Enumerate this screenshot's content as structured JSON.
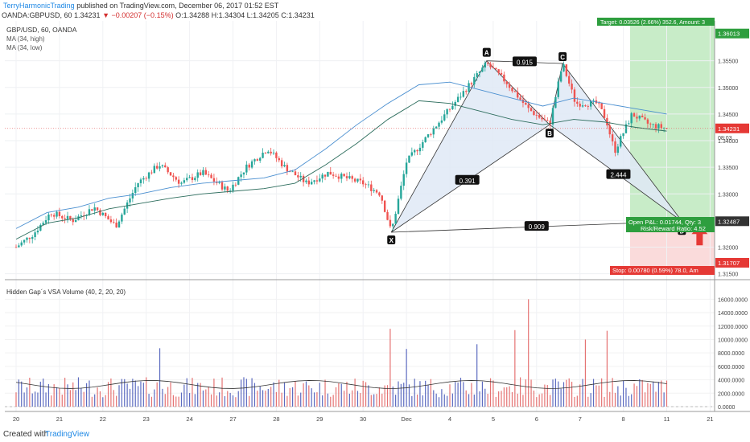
{
  "header": {
    "author": "TerryHarmonicTrading",
    "published": "published on TradingView.com, December 06, 2017 01:52 EST",
    "symbol_line_prefix": "OANDA:GBPUSD, 60  1.34231",
    "change": "−0.00207 (−0.15%)",
    "ohlc": "O:1.34288 H:1.34304 L:1.34205 C:1.34231"
  },
  "legend": {
    "symbol": "GBP/USD, 60, OANDA",
    "ma_high": "MA (34, high)",
    "ma_low": "MA (34, low)",
    "volume_title": "Hidden Gap´s VSA Volume (40, 2, 20, 20)"
  },
  "footer": {
    "created": "Created with",
    "brand": "TradingView"
  },
  "colors": {
    "up": "#26a69a",
    "down": "#ef5350",
    "pattern_fill": "#dfe9f6",
    "target": "#c8ecc8",
    "stop": "#fadbdb",
    "vol_up": "#5c6bc0",
    "vol_down": "#e57373"
  },
  "chart_data": [
    {
      "type": "candlestick",
      "title": "GBP/USD, 60, OANDA",
      "x_tick_labels": [
        "20",
        "21",
        "22",
        "23",
        "24",
        "27",
        "28",
        "29",
        "30",
        "Dec",
        "4",
        "5",
        "6",
        "7",
        "8",
        "11",
        "21"
      ],
      "y_tick_labels": [
        "1.31500",
        "1.32000",
        "1.32500",
        "1.33000",
        "1.33500",
        "1.34000",
        "1.34500",
        "1.35000",
        "1.35500"
      ],
      "ylim": [
        1.3148,
        1.3625
      ],
      "series": [
        {
          "name": "MA (34, high)",
          "values": [
            1.3235,
            1.3265,
            1.3275,
            1.3292,
            1.33,
            1.3312,
            1.332,
            1.3325,
            1.333,
            1.3345,
            1.3385,
            1.343,
            1.347,
            1.3505,
            1.351,
            1.3495,
            1.348,
            1.3465,
            1.348,
            1.347,
            1.346,
            1.345
          ]
        },
        {
          "name": "MA (34, low)",
          "values": [
            1.3215,
            1.3245,
            1.3255,
            1.3272,
            1.3282,
            1.3292,
            1.33,
            1.3305,
            1.331,
            1.332,
            1.3355,
            1.3395,
            1.344,
            1.3475,
            1.347,
            1.3455,
            1.344,
            1.343,
            1.344,
            1.3435,
            1.3425,
            1.3418
          ]
        }
      ],
      "pattern": {
        "points": [
          {
            "label": "X",
            "day": 28.65,
            "price": 1.3228
          },
          {
            "label": "A",
            "day": 30.85,
            "price": 1.355
          },
          {
            "label": "B",
            "day": 32.3,
            "price": 1.343
          },
          {
            "label": "C",
            "day": 32.6,
            "price": 1.3545
          },
          {
            "label": "D",
            "day": 35.35,
            "price": 1.32487
          }
        ],
        "ratios": [
          {
            "label": "0.915",
            "between": "A-C"
          },
          {
            "label": "0.391",
            "between": "X-B"
          },
          {
            "label": "2.444",
            "between": "B-D"
          },
          {
            "label": "0.909",
            "between": "X-D"
          }
        ]
      },
      "price_labels": {
        "target": "1.36013",
        "current": "1.34231",
        "countdown": "08:03",
        "entry": "1.32487",
        "stop": "1.31707"
      },
      "position": {
        "target_text": "Target: 0.03526 (2.66%) 352.6, Amount: 3",
        "open_pl": "Open P&L: 0.01744, Qty: 3",
        "risk_reward": "Risk/Reward Ratio: 4.52",
        "stop_text": "Stop: 0.00780 (0.59%) 78.0, Am"
      }
    },
    {
      "type": "bar",
      "title": "Hidden Gap´s VSA Volume (40, 2, 20, 20)",
      "y_tick_labels": [
        "0.0000",
        "2000.0000",
        "4000.0000",
        "6000.0000",
        "8000.0000",
        "10000.0000",
        "12000.0000",
        "14000.0000",
        "16000.0000"
      ],
      "ylim": [
        0,
        17000
      ],
      "notable_spikes": [
        {
          "day": 23.3,
          "value": 8700
        },
        {
          "day": 28.65,
          "value": 11600
        },
        {
          "day": 29.0,
          "value": 8600
        },
        {
          "day": 31.8,
          "value": 16000
        },
        {
          "day": 31.5,
          "value": 11400
        },
        {
          "day": 33.6,
          "value": 11300
        },
        {
          "day": 33.1,
          "value": 10000
        },
        {
          "day": 30.6,
          "value": 9300
        }
      ]
    }
  ]
}
